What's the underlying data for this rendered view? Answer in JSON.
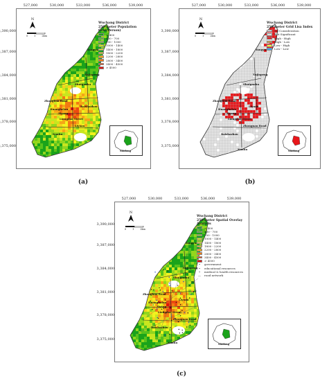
{
  "coords": {
    "x_ticks": [
      "527,000",
      "530,000",
      "533,000",
      "536,000",
      "539,000"
    ],
    "y_ticks": [
      "3,390,000",
      "3,387,000",
      "3,384,000",
      "3,381,000",
      "3,378,000",
      "3,375,000"
    ]
  },
  "north_letter": "N",
  "scale": {
    "zero": "0",
    "mid": "1",
    "end": "2km"
  },
  "inset_label": "Shidong",
  "panels": [
    {
      "label": "(a)",
      "legend_title": [
        "Wuchang District",
        "250-meter Population Grid(Person)"
      ],
      "legend": [
        {
          "text": "< 400",
          "color": "#1aa31a"
        },
        {
          "text": "400 - 700",
          "color": "#56c21c"
        },
        {
          "text": "700 - 1000",
          "color": "#93d61e"
        },
        {
          "text": "1000 - 1400",
          "color": "#c8e61f"
        },
        {
          "text": "1400 - 1800",
          "color": "#f2f21f"
        },
        {
          "text": "1800 - 2200",
          "color": "#f7d11c"
        },
        {
          "text": "2200 - 2800",
          "color": "#f5a617"
        },
        {
          "text": "2800 - 3400",
          "color": "#f27a12"
        },
        {
          "text": "3400 - 4500",
          "color": "#ec4a10"
        },
        {
          "text": "> 4500",
          "color": "#e0130d"
        }
      ],
      "places": [
        "Yangyuan",
        "Xujiapeng",
        "Shuiguohu",
        "Zhonghua Road",
        "Huanghelou",
        "Ziyang",
        "Liangdao Street",
        "Liyuan",
        "Baishazhou",
        "Nanhu"
      ]
    },
    {
      "label": "(b)",
      "legend_title": [
        "Wuchang District",
        "250-meter Grid Lisa Index"
      ],
      "legend": [
        {
          "text": "No Consideration",
          "color": "#ffffff"
        },
        {
          "text": "Not Significant",
          "color": "#e2e2e2"
        },
        {
          "text": "High - High",
          "color": "#e8161a"
        },
        {
          "text": "High - Low",
          "color": "#f2a01a"
        },
        {
          "text": "Low - High",
          "color": "#ffee30"
        },
        {
          "text": "Low - Low",
          "color": "#38a8f0"
        }
      ],
      "places": [
        "Yangyuan",
        "Xujiapeng",
        "Shuiguohu",
        "Zhonghua Road",
        "Huanghelou",
        "Ziyang",
        "Liangdao Street",
        "Zhongnan Road",
        "Liyuan",
        "Baishazhou",
        "Nanhu"
      ]
    },
    {
      "label": "(c)",
      "legend_title": [
        "Wuchang District",
        "250-meter Spatial Overlay Analysis"
      ],
      "legend": [
        {
          "text": "< 400",
          "color": "#1aa31a"
        },
        {
          "text": "400 - 700",
          "color": "#56c21c"
        },
        {
          "text": "700 - 1000",
          "color": "#93d61e"
        },
        {
          "text": "1000 - 1400",
          "color": "#c8e61f"
        },
        {
          "text": "1400 - 1800",
          "color": "#f2f21f"
        },
        {
          "text": "1800 - 2200",
          "color": "#f7d11c"
        },
        {
          "text": "2200 - 2800",
          "color": "#f5a617"
        },
        {
          "text": "2800 - 3400",
          "color": "#f27a12"
        },
        {
          "text": "3400 - 4500",
          "color": "#ec4a10"
        },
        {
          "text": "> 4500",
          "color": "#e0130d"
        }
      ],
      "legend_extra": [
        "government",
        "educational resources",
        "medical & health resources",
        "road network"
      ],
      "places": [
        "Yangyuan",
        "Xujiapeng",
        "Shuiguohu",
        "Zhonghua Road",
        "Huanghelou",
        "Ziyang",
        "Liangdao Street",
        "Zhongnan Road",
        "Liyuan",
        "Baishazhou",
        "Nanhu"
      ]
    }
  ]
}
